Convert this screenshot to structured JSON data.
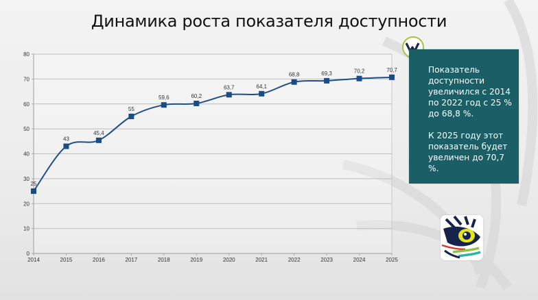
{
  "title": "Динамика роста показателя доступности",
  "panel": {
    "paragraph1": "Показатель доступности увеличился с 2014 по 2022 год с 25 % до 68,8 %.",
    "paragraph2": "К 2025 году этот показатель будет увеличен до 70,7 %."
  },
  "colors": {
    "line": "#1f4f87",
    "marker": "#1a4c85",
    "panel_bg": "#1b5e66",
    "badge_ring": "#a8c43a"
  },
  "chart_data": {
    "type": "line",
    "title": "Динамика роста показателя доступности",
    "xlabel": "",
    "ylabel": "",
    "categories": [
      "2014",
      "2015",
      "2016",
      "2017",
      "2018",
      "2019",
      "2020",
      "2021",
      "2022",
      "2023",
      "2024",
      "2025"
    ],
    "series": [
      {
        "name": "Показатель доступности",
        "values": [
          25,
          43,
          45.4,
          55,
          59.6,
          60.2,
          63.7,
          64.1,
          68.8,
          69.3,
          70.2,
          70.7
        ]
      }
    ],
    "data_labels": [
      "25",
      "43",
      "45,4",
      "55",
      "59,6",
      "60,2",
      "63,7",
      "64,1",
      "68,8",
      "69,3",
      "70,2",
      "70,7"
    ],
    "ylim": [
      0,
      80
    ],
    "yticks": [
      "0",
      "10",
      "20",
      "30",
      "40",
      "50",
      "60",
      "70",
      "80"
    ],
    "grid": true,
    "legend": "none",
    "smooth": true,
    "marker": "square"
  }
}
